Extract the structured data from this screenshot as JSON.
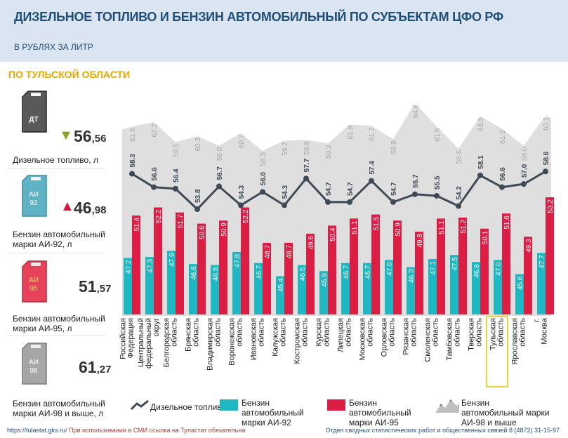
{
  "header": {
    "title": "ДИЗЕЛЬНОЕ ТОПЛИВО И БЕНЗИН АВТОМОБИЛЬНЫЙ ПО СУБЪЕКТАМ ЦФО РФ",
    "subtitle": "В РУБЛЯХ ЗА ЛИТР"
  },
  "region_label": "ПО ТУЛЬСКОЙ ОБЛАСТИ",
  "sidebar": [
    {
      "can_label": "ДТ",
      "can_color": "#595959",
      "value_int": "56",
      "value_dec": "56",
      "trend": "down",
      "trend_color": "#8aa329",
      "label": "Дизельное топливо, л"
    },
    {
      "can_label": "АИ\n92",
      "can_color": "#5fb3c4",
      "value_int": "46",
      "value_dec": "98",
      "trend": "up",
      "trend_color": "#d9152f",
      "label": "Бензин автомобильный марки АИ-92, л"
    },
    {
      "can_label": "АИ\n95",
      "can_color": "#e8415a",
      "value_int": "51",
      "value_dec": "57",
      "trend": "",
      "label": "Бензин автомобильный марки АИ-95, л"
    },
    {
      "can_label": "АИ\n98",
      "can_color": "#a6a6a6",
      "value_int": "61",
      "value_dec": "27",
      "trend": "",
      "label": "Бензин автомобильный марки АИ-98 и выше, л"
    }
  ],
  "chart_data": {
    "type": "bar",
    "categories": [
      "Российская Федерация",
      "Центральный федеральный округ",
      "Белгородская область",
      "Брянская область",
      "Владимирская область",
      "Воронежская область",
      "Ивановская область",
      "Калужская область",
      "Костромская область",
      "Курская область",
      "Липецкая область",
      "Московская область",
      "Орловская область",
      "Рязанская область",
      "Смоленская область",
      "Тамбовская область",
      "Тверская область",
      "Тульская область",
      "Ярославская область",
      "г. Москва"
    ],
    "highlight_category": "Тульская область",
    "series": [
      {
        "name": "Дизельное топливо",
        "type": "line",
        "color": "#3f4a57",
        "values": [
          58.3,
          56.6,
          56.4,
          53.8,
          56.7,
          54.3,
          56.0,
          54.3,
          57.7,
          54.7,
          54.7,
          57.4,
          54.7,
          55.7,
          55.5,
          54.2,
          58.1,
          56.6,
          57.0,
          58.6
        ]
      },
      {
        "name": "Бензин автомобильный марки АИ-92",
        "type": "bar",
        "color": "#1fb7c2",
        "values": [
          47.2,
          47.3,
          47.9,
          46.6,
          46.5,
          47.8,
          46.7,
          45.4,
          46.5,
          45.9,
          46.7,
          46.7,
          47.0,
          46.3,
          47.1,
          47.5,
          46.8,
          47.0,
          45.6,
          47.7
        ]
      },
      {
        "name": "Бензин автомобильный марки АИ-95",
        "type": "bar",
        "color": "#dc1e45",
        "values": [
          51.4,
          52.2,
          51.7,
          50.6,
          50.9,
          52.2,
          48.7,
          48.7,
          49.6,
          50.4,
          51.1,
          51.5,
          50.9,
          49.8,
          51.1,
          51.2,
          50.1,
          51.6,
          49.3,
          53.2
        ]
      },
      {
        "name": "Бензин автомобильный марки АИ-98 и выше",
        "type": "area",
        "color": "#d9d9d9",
        "values": [
          61.6,
          62.2,
          59.5,
          60.3,
          59.0,
          60.7,
          58.3,
          59.7,
          59.8,
          59.3,
          61.9,
          61.7,
          59.9,
          64.8,
          61.6,
          58.6,
          63.0,
          61.3,
          59.0,
          63.1
        ]
      }
    ]
  },
  "legend": [
    {
      "name": "Дизельное топливо",
      "icon": "line-zigzag-icon"
    },
    {
      "name": "Бензин автомобильный марки АИ-92",
      "icon": "teal-square-icon"
    },
    {
      "name": "Бензин автомобильный марки АИ-95",
      "icon": "red-square-icon"
    },
    {
      "name": "Бензин автомобильный марки АИ-98 и выше",
      "icon": "gray-mountain-icon"
    }
  ],
  "footer": {
    "url": "https://tulastat.gks.ru/",
    "note": " При использовании в СМИ ссылка на Туластат обязательна",
    "right": "Отдел сводных статистических работ и общественных связей 8 (4872) 31-15-97"
  }
}
